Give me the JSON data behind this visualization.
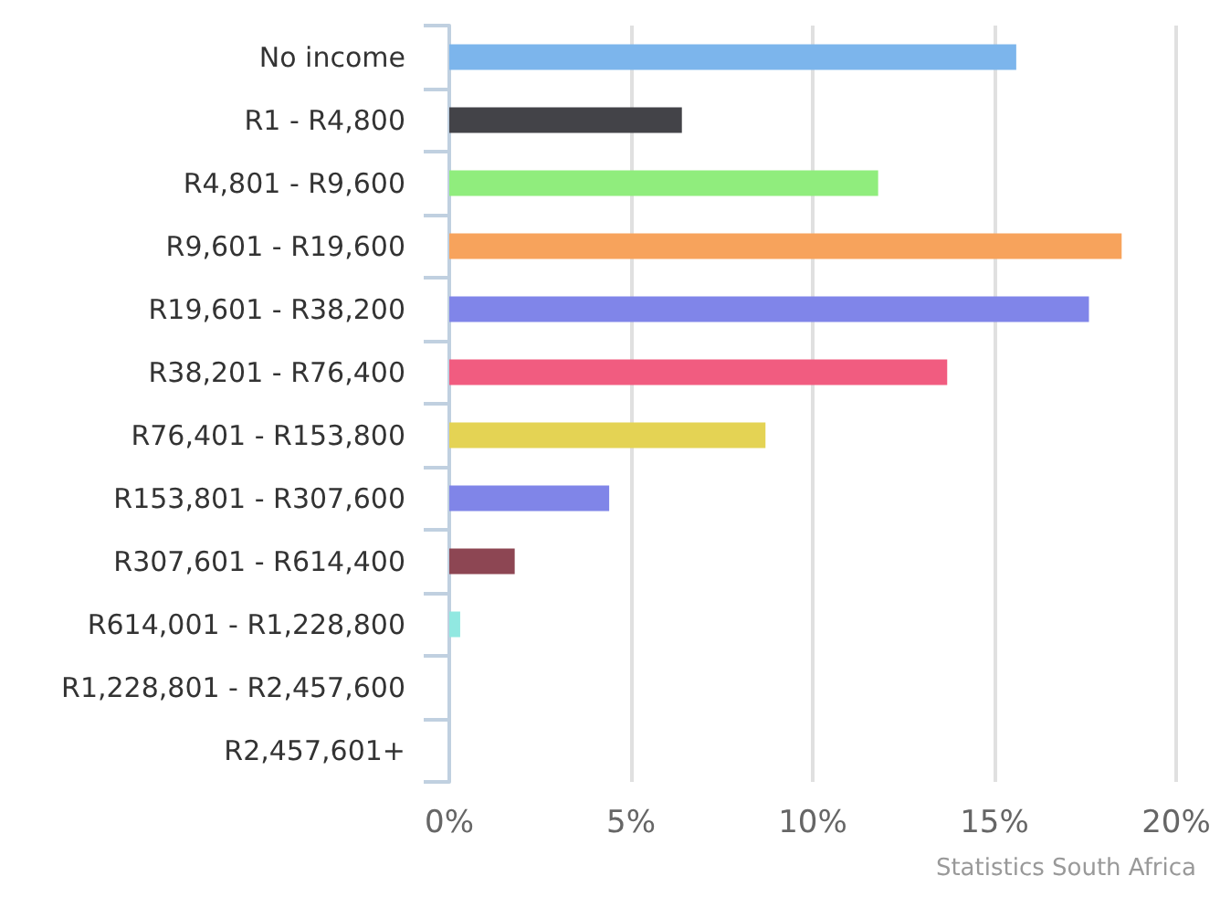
{
  "chart_data": {
    "type": "bar",
    "orientation": "horizontal",
    "categories": [
      "No income",
      "R1 - R4,800",
      "R4,801 - R9,600",
      "R9,601 - R19,600",
      "R19,601 - R38,200",
      "R38,201 - R76,400",
      "R76,401 - R153,800",
      "R153,801 - R307,600",
      "R307,601 - R614,400",
      "R614,001 - R1,228,800",
      "R1,228,801 - R2,457,600",
      "R2,457,601+"
    ],
    "values": [
      15.6,
      6.4,
      11.8,
      18.5,
      17.6,
      13.7,
      8.7,
      4.4,
      1.8,
      0.3,
      0,
      0
    ],
    "colors": [
      "#7cb5ec",
      "#434348",
      "#90ed7d",
      "#f7a35c",
      "#8085e9",
      "#f15c80",
      "#e4d354",
      "#8085e8",
      "#8d4653",
      "#91e8e1",
      "#7cb5ec",
      "#434348"
    ],
    "xlim": [
      0,
      20
    ],
    "xticks": [
      {
        "value": 0,
        "label": "0%"
      },
      {
        "value": 5,
        "label": "5%"
      },
      {
        "value": 10,
        "label": "10%"
      },
      {
        "value": 15,
        "label": "15%"
      },
      {
        "value": 20,
        "label": "20%"
      }
    ],
    "grid": "x",
    "annotations": [
      "Statistics South Africa"
    ]
  }
}
